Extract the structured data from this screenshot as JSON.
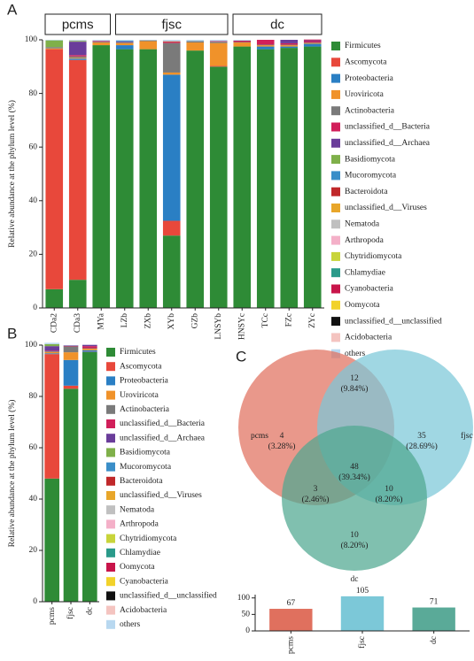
{
  "chart_data": [
    {
      "type": "bar",
      "panel": "A",
      "stacked": true,
      "ylabel": "Relative abundance at the phylum level (%)",
      "groups": [
        "pcms",
        "fjsc",
        "dc"
      ],
      "categories": [
        "CDa2",
        "CDa3",
        "MYa",
        "LZb",
        "ZXb",
        "XYb",
        "GZb",
        "LNSYb",
        "HNSYc",
        "TCc",
        "FZc",
        "ZYc"
      ],
      "ylim": [
        0,
        100
      ],
      "yticks": [
        0,
        20,
        40,
        60,
        80,
        100
      ],
      "series": [
        {
          "name": "Firmicutes",
          "color": "#2e8b36",
          "values": [
            7,
            10.5,
            98,
            96.5,
            96.5,
            27,
            96,
            90,
            97.5,
            96.5,
            97,
            97.5
          ]
        },
        {
          "name": "Ascomycota",
          "color": "#e8483b",
          "values": [
            89.5,
            82,
            0,
            0,
            0,
            5.5,
            0,
            0.3,
            0,
            0,
            0,
            0
          ]
        },
        {
          "name": "Proteobacteria",
          "color": "#2a7fc4",
          "values": [
            0,
            0.5,
            0,
            1.5,
            0,
            54.5,
            0,
            0,
            0,
            1,
            0.5,
            1
          ]
        },
        {
          "name": "Uroviricota",
          "color": "#f0922a",
          "values": [
            0.3,
            0.3,
            1,
            0.8,
            3,
            0.8,
            3,
            8.5,
            1.5,
            0.5,
            0.5,
            0.3
          ]
        },
        {
          "name": "Actinobacteria",
          "color": "#7a7a7a",
          "values": [
            0.5,
            0.5,
            0.3,
            0.3,
            0.3,
            11,
            0.5,
            0.5,
            0.2,
            0.2,
            0.2,
            0.2
          ]
        },
        {
          "name": "unclassified_d__Bacteria",
          "color": "#d11f5a",
          "values": [
            0,
            0.5,
            0.3,
            0,
            0,
            0.3,
            0,
            0.2,
            0.3,
            1.8,
            0.5,
            0.5
          ]
        },
        {
          "name": "unclassified_d__Archaea",
          "color": "#6a3d9a",
          "values": [
            0,
            5,
            0,
            0.3,
            0,
            0,
            0,
            0,
            0,
            0,
            1.3,
            0.3
          ]
        },
        {
          "name": "Basidiomycota",
          "color": "#7fb04a",
          "values": [
            2.5,
            0.3,
            0,
            0,
            0,
            0,
            0,
            0,
            0,
            0,
            0,
            0
          ]
        },
        {
          "name": "Mucoromycota",
          "color": "#3a8ec8",
          "values": [
            0,
            0,
            0,
            0.3,
            0,
            0,
            0,
            0,
            0,
            0,
            0,
            0
          ]
        },
        {
          "name": "Bacteroidota",
          "color": "#c0282a",
          "values": [
            0,
            0,
            0,
            0,
            0,
            0.3,
            0,
            0,
            0,
            0,
            0,
            0
          ]
        },
        {
          "name": "unclassified_d__Viruses",
          "color": "#e8a62a",
          "values": [
            0,
            0,
            0,
            0,
            0,
            0,
            0,
            0,
            0,
            0,
            0,
            0
          ]
        },
        {
          "name": "Nematoda",
          "color": "#c0c0c0",
          "values": [
            0,
            0.2,
            0,
            0,
            0,
            0.3,
            0,
            0,
            0,
            0,
            0,
            0
          ]
        },
        {
          "name": "Arthropoda",
          "color": "#f4b0c8",
          "values": [
            0,
            0,
            0,
            0,
            0,
            0,
            0,
            0,
            0,
            0,
            0,
            0
          ]
        },
        {
          "name": "Chytridiomycota",
          "color": "#c8d43a",
          "values": [
            0,
            0,
            0,
            0,
            0,
            0,
            0,
            0,
            0,
            0,
            0,
            0
          ]
        },
        {
          "name": "Chlamydiae",
          "color": "#2a9a8a",
          "values": [
            0,
            0,
            0,
            0,
            0,
            0,
            0,
            0,
            0,
            0,
            0,
            0
          ]
        },
        {
          "name": "Cyanobacteria",
          "color": "#c8154a",
          "values": [
            0,
            0,
            0,
            0,
            0,
            0,
            0,
            0,
            0.2,
            0,
            0,
            0.3
          ]
        },
        {
          "name": "Oomycota",
          "color": "#f2d22a",
          "values": [
            0,
            0,
            0,
            0,
            0,
            0,
            0,
            0,
            0,
            0,
            0,
            0
          ]
        },
        {
          "name": "unclassified_d__unclassified",
          "color": "#111111",
          "values": [
            0,
            0,
            0,
            0,
            0,
            0,
            0,
            0,
            0,
            0,
            0,
            0
          ]
        },
        {
          "name": "Acidobacteria",
          "color": "#f4c4c0",
          "values": [
            0,
            0,
            0,
            0,
            0,
            0,
            0,
            0,
            0,
            0,
            0,
            0
          ]
        },
        {
          "name": "others",
          "color": "#b8d8f0",
          "values": [
            0.2,
            0.2,
            0.4,
            0.3,
            0.2,
            0.3,
            0.5,
            0.5,
            0.3,
            0,
            0,
            0
          ]
        }
      ]
    },
    {
      "type": "bar",
      "panel": "B",
      "stacked": true,
      "ylabel": "Relative abundance at the phylum level (%)",
      "categories": [
        "pcms",
        "fjsc",
        "dc"
      ],
      "ylim": [
        0,
        100
      ],
      "yticks": [
        0,
        20,
        40,
        60,
        80,
        100
      ],
      "series": [
        {
          "name": "Firmicutes",
          "color": "#2e8b36",
          "values": [
            48,
            83,
            97.3
          ]
        },
        {
          "name": "Ascomycota",
          "color": "#e8483b",
          "values": [
            48.5,
            1.2,
            0.1
          ]
        },
        {
          "name": "Proteobacteria",
          "color": "#2a7fc4",
          "values": [
            0.3,
            10,
            0.6
          ]
        },
        {
          "name": "Uroviricota",
          "color": "#f0922a",
          "values": [
            0.5,
            3,
            0.6
          ]
        },
        {
          "name": "Actinobacteria",
          "color": "#7a7a7a",
          "values": [
            0.3,
            2.3,
            0.2
          ]
        },
        {
          "name": "unclassified_d__Bacteria",
          "color": "#d11f5a",
          "values": [
            0.2,
            0.2,
            0.8
          ]
        },
        {
          "name": "unclassified_d__Archaea",
          "color": "#6a3d9a",
          "values": [
            1.8,
            0.2,
            0.5
          ]
        },
        {
          "name": "Basidiomycota",
          "color": "#7fb04a",
          "values": [
            0.8,
            0,
            0
          ]
        },
        {
          "name": "Mucoromycota",
          "color": "#3a8ec8",
          "values": [
            0,
            0,
            0
          ]
        },
        {
          "name": "Bacteroidota",
          "color": "#c0282a",
          "values": [
            0,
            0,
            0
          ]
        },
        {
          "name": "unclassified_d__Viruses",
          "color": "#e8a62a",
          "values": [
            0,
            0,
            0
          ]
        },
        {
          "name": "Nematoda",
          "color": "#c0c0c0",
          "values": [
            0,
            0,
            0
          ]
        },
        {
          "name": "Arthropoda",
          "color": "#f4b0c8",
          "values": [
            0,
            0,
            0
          ]
        },
        {
          "name": "Chytridiomycota",
          "color": "#c8d43a",
          "values": [
            0,
            0,
            0
          ]
        },
        {
          "name": "Chlamydiae",
          "color": "#2a9a8a",
          "values": [
            0,
            0,
            0
          ]
        },
        {
          "name": "Oomycota",
          "color": "#c8154a",
          "values": [
            0,
            0,
            0
          ]
        },
        {
          "name": "Cyanobacteria",
          "color": "#f2d22a",
          "values": [
            0,
            0,
            0
          ]
        },
        {
          "name": "unclassified_d__unclassified",
          "color": "#111111",
          "values": [
            0,
            0,
            0
          ]
        },
        {
          "name": "Acidobacteria",
          "color": "#f4c4c0",
          "values": [
            0,
            0,
            0
          ]
        },
        {
          "name": "others",
          "color": "#b8d8f0",
          "values": [
            0.5,
            0.1,
            0
          ]
        }
      ]
    },
    {
      "type": "venn",
      "panel": "C",
      "sets": [
        {
          "name": "pcms",
          "color": "#e0705e"
        },
        {
          "name": "fjsc",
          "color": "#7cc8d8"
        },
        {
          "name": "dc",
          "color": "#4fa890"
        }
      ],
      "regions": [
        {
          "value": 4,
          "label": "(3.28%)"
        },
        {
          "value": 12,
          "label": "(9.84%)"
        },
        {
          "value": 35,
          "label": "(28.69%)"
        },
        {
          "value": 48,
          "label": "(39.34%)"
        },
        {
          "value": 3,
          "label": "(2.46%)"
        },
        {
          "value": 10,
          "label": "(8.20%)"
        },
        {
          "value": 10,
          "label": "(8.20%)"
        }
      ]
    },
    {
      "type": "bar",
      "categories": [
        "pcms",
        "fjsc",
        "dc"
      ],
      "values": [
        67,
        105,
        71
      ],
      "colors": [
        "#e0705e",
        "#7cc8d8",
        "#5aaa98"
      ],
      "ylim": [
        0,
        110
      ],
      "yticks": [
        0,
        50,
        100
      ]
    }
  ]
}
